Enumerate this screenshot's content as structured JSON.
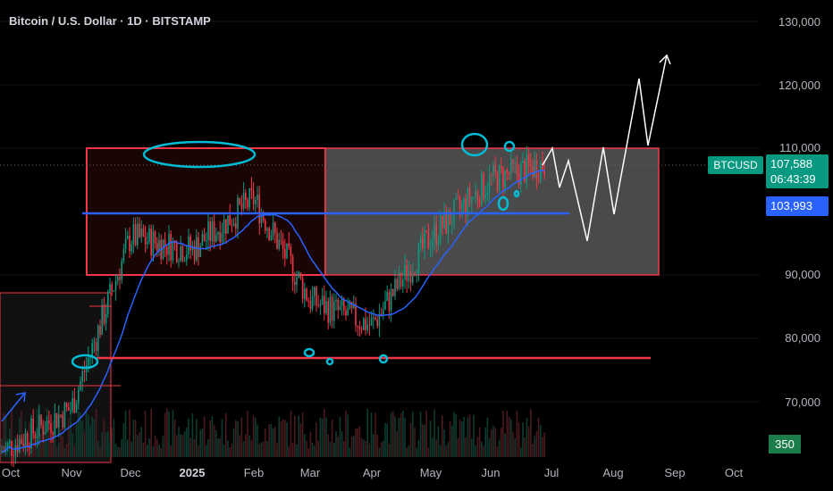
{
  "header": {
    "title": "Bitcoin / U.S. Dollar · 1D · BITSTAMP"
  },
  "price_axis": {
    "labels": [
      "130,000",
      "120,000",
      "110,000",
      "90,000",
      "80,000",
      "70,000"
    ]
  },
  "time_axis": {
    "labels": [
      "Oct",
      "Nov",
      "Dec",
      "2025",
      "Feb",
      "Mar",
      "Apr",
      "May",
      "Jun",
      "Jul",
      "Aug",
      "Sep",
      "Oct"
    ]
  },
  "badges": {
    "ticker": "BTCUSD",
    "last_price": "107,588",
    "countdown": "06:43:39",
    "ma_value": "103,993",
    "volume": "350"
  },
  "colors": {
    "background": "#000000",
    "up": "#089981",
    "down": "#f23645",
    "ma": "#2962ff",
    "annotation": "#00bcd4",
    "zone_border": "#f23645"
  },
  "chart_data": {
    "type": "line",
    "title": "Bitcoin / U.S. Dollar · 1D · BITSTAMP",
    "xlabel": "",
    "ylabel": "",
    "ylim": [
      62000,
      132000
    ],
    "x": [
      "Oct",
      "Nov",
      "Dec",
      "2025",
      "Feb",
      "Mar",
      "Apr",
      "May",
      "Jun",
      "Jul"
    ],
    "series": [
      {
        "values": [
          62000,
          69000,
          96000,
          94000,
          102000,
          86000,
          82000,
          96000,
          105000,
          107588
        ]
      }
    ],
    "annotations": {
      "ma_level": 103993,
      "last_price": 107588,
      "range_zone": [
        91000,
        110000
      ],
      "support_line": 77000,
      "projection_peak": 125000
    }
  }
}
